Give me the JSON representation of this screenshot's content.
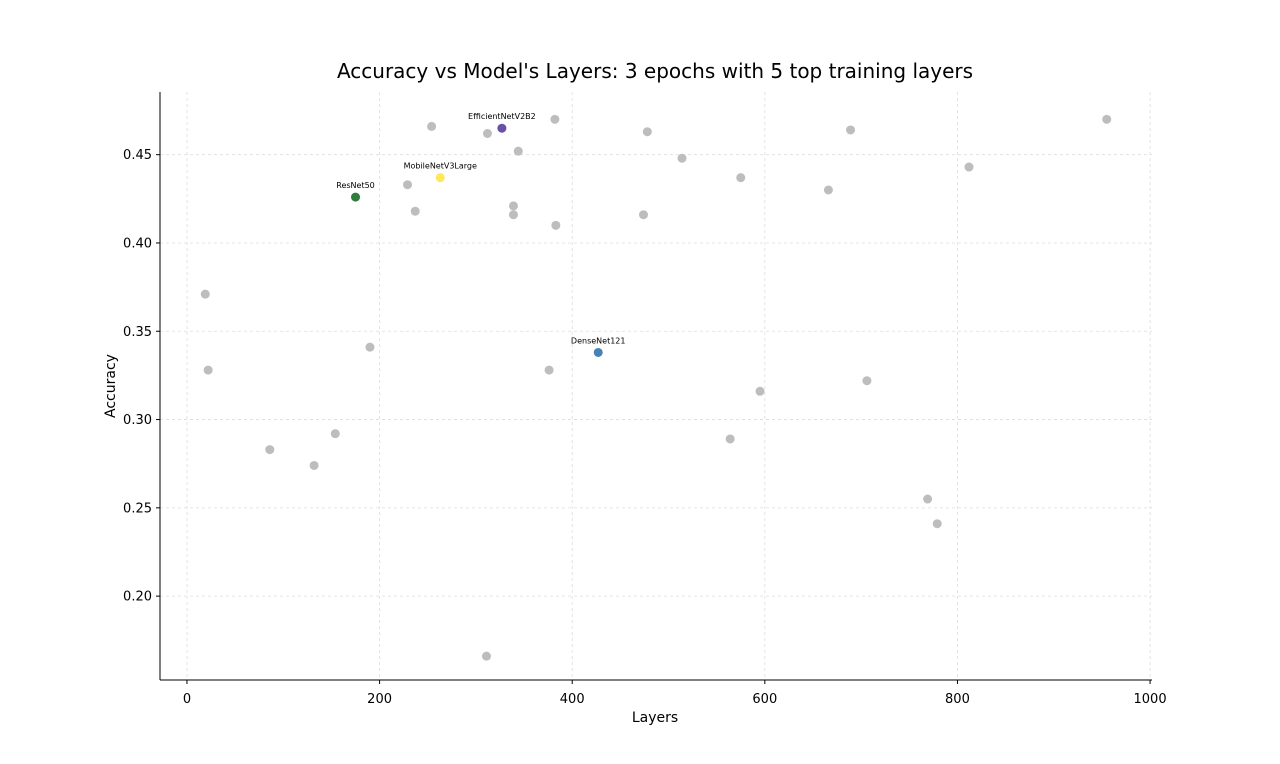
{
  "chart_data": {
    "type": "scatter",
    "title": "Accuracy vs Model's Layers: 3 epochs with 5 top training layers",
    "xlabel": "Layers",
    "ylabel": "Accuracy",
    "xlim": [
      -28,
      1002
    ],
    "ylim": [
      0.1525,
      0.4855
    ],
    "xticks": [
      0,
      200,
      400,
      600,
      800,
      1000
    ],
    "yticks": [
      0.2,
      0.25,
      0.3,
      0.35,
      0.4,
      0.45
    ],
    "xtick_labels": [
      "0",
      "200",
      "400",
      "600",
      "800",
      "1000"
    ],
    "ytick_labels": [
      "0.20",
      "0.25",
      "0.30",
      "0.35",
      "0.40",
      "0.45"
    ],
    "grid": true,
    "background_color": "#bdbdbd",
    "highlighted": [
      {
        "label": "EfficientNetV2B2",
        "x": 327,
        "y": 0.465,
        "color": "#6a51a3"
      },
      {
        "label": "MobileNetV3Large",
        "x": 263,
        "y": 0.437,
        "color": "#fde85a"
      },
      {
        "label": "ResNet50",
        "x": 175,
        "y": 0.426,
        "color": "#2e7d3a"
      },
      {
        "label": "DenseNet121",
        "x": 427,
        "y": 0.338,
        "color": "#4682b4"
      }
    ],
    "background_points": [
      {
        "x": 19,
        "y": 0.371
      },
      {
        "x": 22,
        "y": 0.328
      },
      {
        "x": 86,
        "y": 0.283
      },
      {
        "x": 132,
        "y": 0.274
      },
      {
        "x": 154,
        "y": 0.292
      },
      {
        "x": 190,
        "y": 0.341
      },
      {
        "x": 229,
        "y": 0.433
      },
      {
        "x": 237,
        "y": 0.418
      },
      {
        "x": 254,
        "y": 0.466
      },
      {
        "x": 312,
        "y": 0.462
      },
      {
        "x": 311,
        "y": 0.166
      },
      {
        "x": 339,
        "y": 0.421
      },
      {
        "x": 339,
        "y": 0.416
      },
      {
        "x": 344,
        "y": 0.452
      },
      {
        "x": 382,
        "y": 0.47
      },
      {
        "x": 383,
        "y": 0.41
      },
      {
        "x": 376,
        "y": 0.328
      },
      {
        "x": 474,
        "y": 0.416
      },
      {
        "x": 478,
        "y": 0.463
      },
      {
        "x": 514,
        "y": 0.448
      },
      {
        "x": 564,
        "y": 0.289
      },
      {
        "x": 575,
        "y": 0.437
      },
      {
        "x": 595,
        "y": 0.316
      },
      {
        "x": 666,
        "y": 0.43
      },
      {
        "x": 689,
        "y": 0.464
      },
      {
        "x": 706,
        "y": 0.322
      },
      {
        "x": 769,
        "y": 0.255
      },
      {
        "x": 779,
        "y": 0.241
      },
      {
        "x": 812,
        "y": 0.443
      },
      {
        "x": 955,
        "y": 0.47
      }
    ]
  }
}
